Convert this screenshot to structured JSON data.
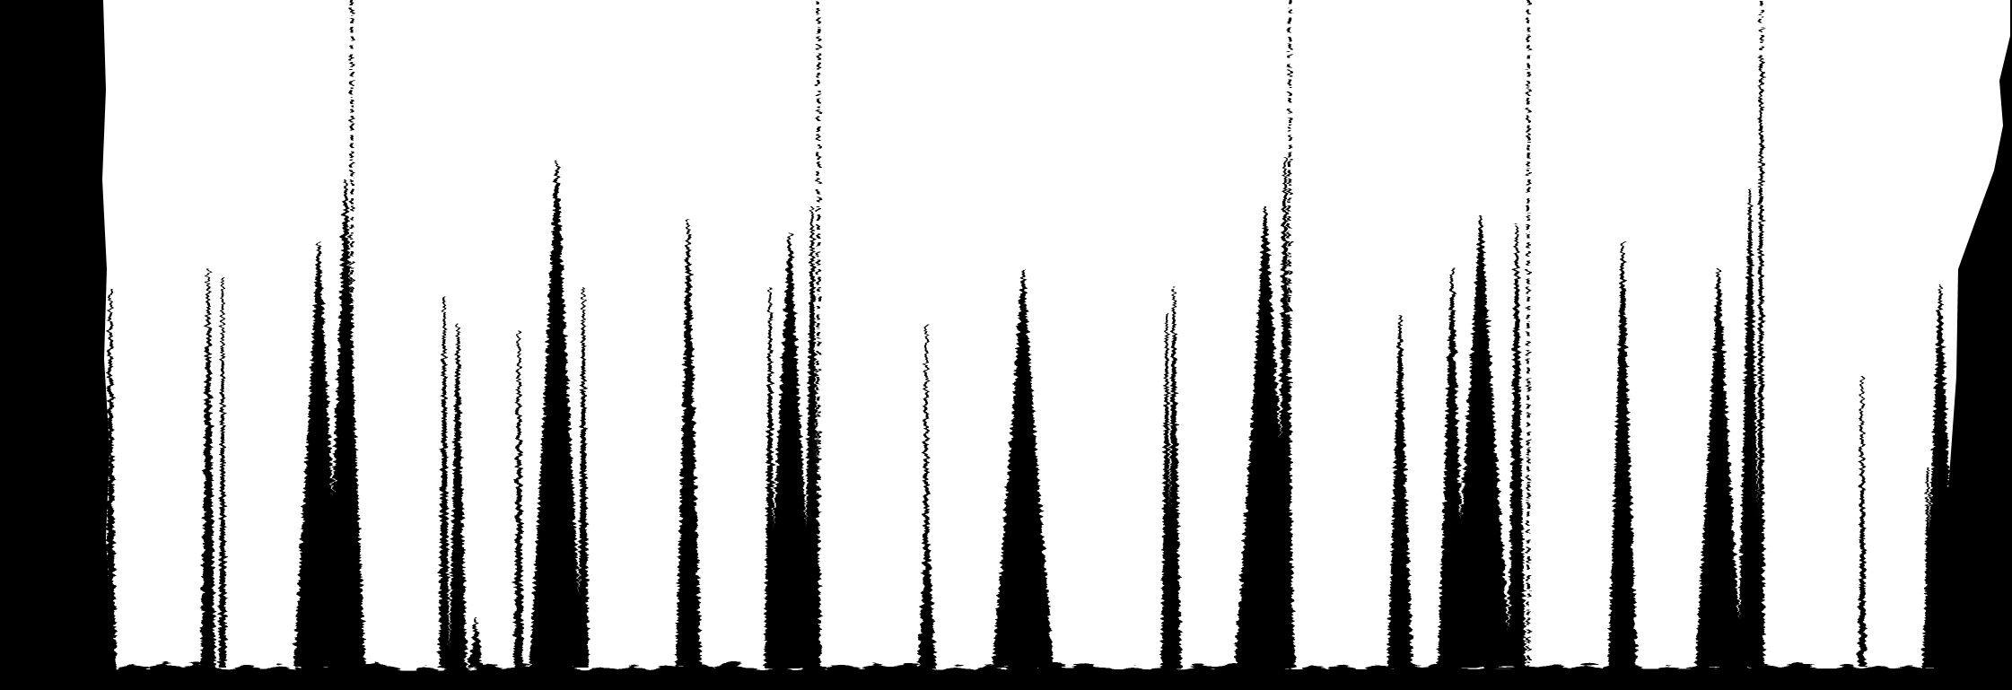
{
  "image": {
    "description_colors": {
      "background": "#000000",
      "foreground": "#ffffff"
    },
    "style": "high-contrast black-and-white abstract image of jagged vertical dark streaks on a white field"
  }
}
